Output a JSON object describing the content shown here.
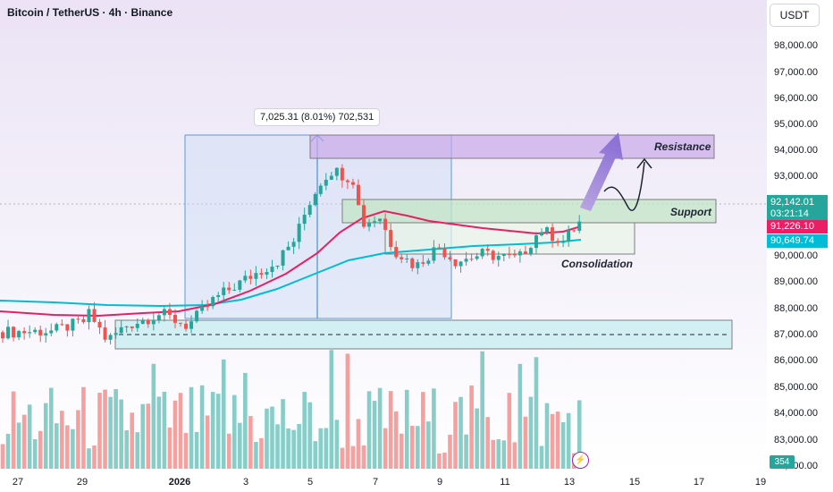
{
  "header": {
    "title": "Bitcoin / TetherUS · 4h · Binance",
    "currency_button": "USDT"
  },
  "y_axis": {
    "labels": [
      "98,000.00",
      "97,000.00",
      "96,000.00",
      "95,000.00",
      "94,000.00",
      "93,000.00",
      "90,000.00",
      "89,000.00",
      "88,000.00",
      "87,000.00",
      "86,000.00",
      "85,000.00",
      "84,000.00",
      "83,000.00",
      "82,000.00"
    ],
    "values": [
      98000,
      97000,
      96000,
      95000,
      94000,
      93000,
      90000,
      89000,
      88000,
      87000,
      86000,
      85000,
      84000,
      83000,
      82000
    ]
  },
  "x_axis": {
    "labels": [
      "27",
      "29",
      "2026",
      "3",
      "5",
      "7",
      "9",
      "11",
      "13",
      "15",
      "17",
      "19"
    ],
    "bold_label": "2026"
  },
  "price_tags": {
    "last_price": "92,142.01",
    "countdown": "03:21:14",
    "ema_fast": "91,226.10",
    "ema_slow": "90,649.74",
    "last_price_value": 92142.01,
    "ema_fast_value": 91226.1,
    "ema_slow_value": 90649.74
  },
  "volume_badge": "354",
  "measure_tooltip": "7,025.31 (8.01%) 702,531",
  "annotations": {
    "resistance": "Resistance",
    "support": "Support",
    "consolidation": "Consolidation"
  },
  "colors": {
    "up": "#26a69a",
    "down": "#ef5350",
    "ema_fast": "#e91e63",
    "ema_slow": "#00bcd4",
    "resistance_zone": "#b39ddb",
    "support_zone": "#a5d6a7",
    "bottom_zone": "#b2ebf2",
    "arrow": "#9575cd"
  },
  "chart_data": {
    "type": "candlestick",
    "symbol": "BTCUSDT",
    "interval": "4h",
    "ylim": [
      82000,
      99000
    ],
    "zones": {
      "resistance": [
        93900,
        94650
      ],
      "support": [
        91300,
        92150
      ],
      "bottom_support": [
        86500,
        87600
      ],
      "consolidation": [
        90050,
        91500
      ]
    }
  }
}
